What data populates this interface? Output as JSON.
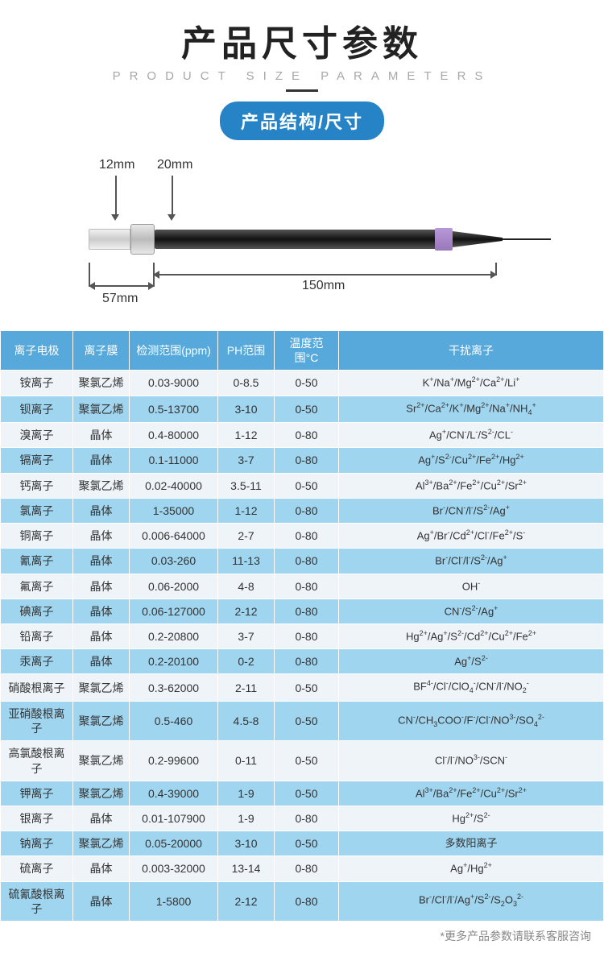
{
  "header": {
    "title_cn": "产品尺寸参数",
    "title_en": "PRODUCT SIZE PARAMETERS",
    "pill": "产品结构/尺寸"
  },
  "diagram": {
    "d1": "12mm",
    "d2": "20mm",
    "d3": "57mm",
    "d4": "150mm"
  },
  "table": {
    "columns": [
      "离子电极",
      "离子膜",
      "检测范围(ppm)",
      "PH范围",
      "温度范围°C",
      "干扰离子"
    ]
  },
  "rows": [
    {
      "c0": "铵离子",
      "c1": "聚氯乙烯",
      "c2": "0.03-9000",
      "c3": "0-8.5",
      "c4": "0-50",
      "c5": "K<sup>+</sup>/Na<sup>+</sup>/Mg<sup>2+</sup>/Ca<sup>2+</sup>/Li<sup>+</sup>"
    },
    {
      "c0": "钡离子",
      "c1": "聚氯乙烯",
      "c2": "0.5-13700",
      "c3": "3-10",
      "c4": "0-50",
      "c5": "Sr<sup>2+</sup>/Ca<sup>2+</sup>/K<sup>+</sup>/Mg<sup>2+</sup>/Na<sup>+</sup>/NH<sub>4</sub><sup>+</sup>"
    },
    {
      "c0": "溴离子",
      "c1": "晶体",
      "c2": "0.4-80000",
      "c3": "1-12",
      "c4": "0-80",
      "c5": "Ag<sup>+</sup>/CN<sup>-</sup>/L<sup>-</sup>/S<sup>2-</sup>/CL<sup>-</sup>"
    },
    {
      "c0": "镉离子",
      "c1": "晶体",
      "c2": "0.1-11000",
      "c3": "3-7",
      "c4": "0-80",
      "c5": "Ag<sup>+</sup>/S<sup>2-</sup>/Cu<sup>2+</sup>/Fe<sup>2+</sup>/Hg<sup>2+</sup>"
    },
    {
      "c0": "钙离子",
      "c1": "聚氯乙烯",
      "c2": "0.02-40000",
      "c3": "3.5-11",
      "c4": "0-50",
      "c5": "Al<sup>3+</sup>/Ba<sup>2+</sup>/Fe<sup>2+</sup>/Cu<sup>2+</sup>/Sr<sup>2+</sup>"
    },
    {
      "c0": "氯离子",
      "c1": "晶体",
      "c2": "1-35000",
      "c3": "1-12",
      "c4": "0-80",
      "c5": "Br<sup>-</sup>/CN<sup>-</sup>/l<sup>-</sup>/S<sup>2-</sup>/Ag<sup>+</sup>"
    },
    {
      "c0": "铜离子",
      "c1": "晶体",
      "c2": "0.006-64000",
      "c3": "2-7",
      "c4": "0-80",
      "c5": "Ag<sup>+</sup>/Br<sup>-</sup>/Cd<sup>2+</sup>/Cl<sup>-</sup>/Fe<sup>2+</sup>/S<sup>-</sup>"
    },
    {
      "c0": "氰离子",
      "c1": "晶体",
      "c2": "0.03-260",
      "c3": "11-13",
      "c4": "0-80",
      "c5": "Br<sup>-</sup>/Cl<sup>-</sup>/l<sup>-</sup>/S<sup>2-</sup>/Ag<sup>+</sup>"
    },
    {
      "c0": "氟离子",
      "c1": "晶体",
      "c2": "0.06-2000",
      "c3": "4-8",
      "c4": "0-80",
      "c5": "OH<sup>-</sup>"
    },
    {
      "c0": "碘离子",
      "c1": "晶体",
      "c2": "0.06-127000",
      "c3": "2-12",
      "c4": "0-80",
      "c5": "CN<sup>-</sup>/S<sup>2-</sup>/Ag<sup>+</sup>"
    },
    {
      "c0": "铅离子",
      "c1": "晶体",
      "c2": "0.2-20800",
      "c3": "3-7",
      "c4": "0-80",
      "c5": "Hg<sup>2+</sup>/Ag<sup>+</sup>/S<sup>2-</sup>/Cd<sup>2+</sup>/Cu<sup>2+</sup>/Fe<sup>2+</sup>"
    },
    {
      "c0": "汞离子",
      "c1": "晶体",
      "c2": "0.2-20100",
      "c3": "0-2",
      "c4": "0-80",
      "c5": "Ag<sup>+</sup>/S<sup>2-</sup>"
    },
    {
      "c0": "硝酸根离子",
      "c1": "聚氯乙烯",
      "c2": "0.3-62000",
      "c3": "2-11",
      "c4": "0-50",
      "c5": "BF<sup>4-</sup>/Cl<sup>-</sup>/ClO<sub>4</sub><sup>-</sup>/CN<sup>-</sup>/l<sup>-</sup>/NO<sub>2</sub><sup>-</sup>"
    },
    {
      "c0": "亚硝酸根离子",
      "c1": "聚氯乙烯",
      "c2": "0.5-460",
      "c3": "4.5-8",
      "c4": "0-50",
      "c5": "CN<sup>-</sup>/CH<sub>3</sub>COO<sup>-</sup>/F<sup>-</sup>/Cl<sup>-</sup>/NO<sup>3-</sup>/SO<sub>4</sub><sup>2-</sup>"
    },
    {
      "c0": "高氯酸根离子",
      "c1": "聚氯乙烯",
      "c2": "0.2-99600",
      "c3": "0-11",
      "c4": "0-50",
      "c5": "Cl<sup>-</sup>/l<sup>-</sup>/NO<sup>3-</sup>/SCN<sup>-</sup>"
    },
    {
      "c0": "钾离子",
      "c1": "聚氯乙烯",
      "c2": "0.4-39000",
      "c3": "1-9",
      "c4": "0-50",
      "c5": "Al<sup>3+</sup>/Ba<sup>2+</sup>/Fe<sup>2+</sup>/Cu<sup>2+</sup>/Sr<sup>2+</sup>"
    },
    {
      "c0": "银离子",
      "c1": "晶体",
      "c2": "0.01-107900",
      "c3": "1-9",
      "c4": "0-80",
      "c5": "Hg<sup>2+</sup>/S<sup>2-</sup>"
    },
    {
      "c0": "钠离子",
      "c1": "聚氯乙烯",
      "c2": "0.05-20000",
      "c3": "3-10",
      "c4": "0-50",
      "c5": "多数阳离子"
    },
    {
      "c0": "硫离子",
      "c1": "晶体",
      "c2": "0.003-32000",
      "c3": "13-14",
      "c4": "0-80",
      "c5": "Ag<sup>+</sup>/Hg<sup>2+</sup>"
    },
    {
      "c0": "硫氰酸根离子",
      "c1": "晶体",
      "c2": "1-5800",
      "c3": "2-12",
      "c4": "0-80",
      "c5": "Br<sup>-</sup>/Cl<sup>-</sup>/l<sup>-</sup>/Ag<sup>+</sup>/S<sup>2-</sup>/S<sub>2</sub>O<sub>3</sub><sup>2-</sup>"
    }
  ],
  "footnote": "*更多产品参数请联系客服咨询"
}
